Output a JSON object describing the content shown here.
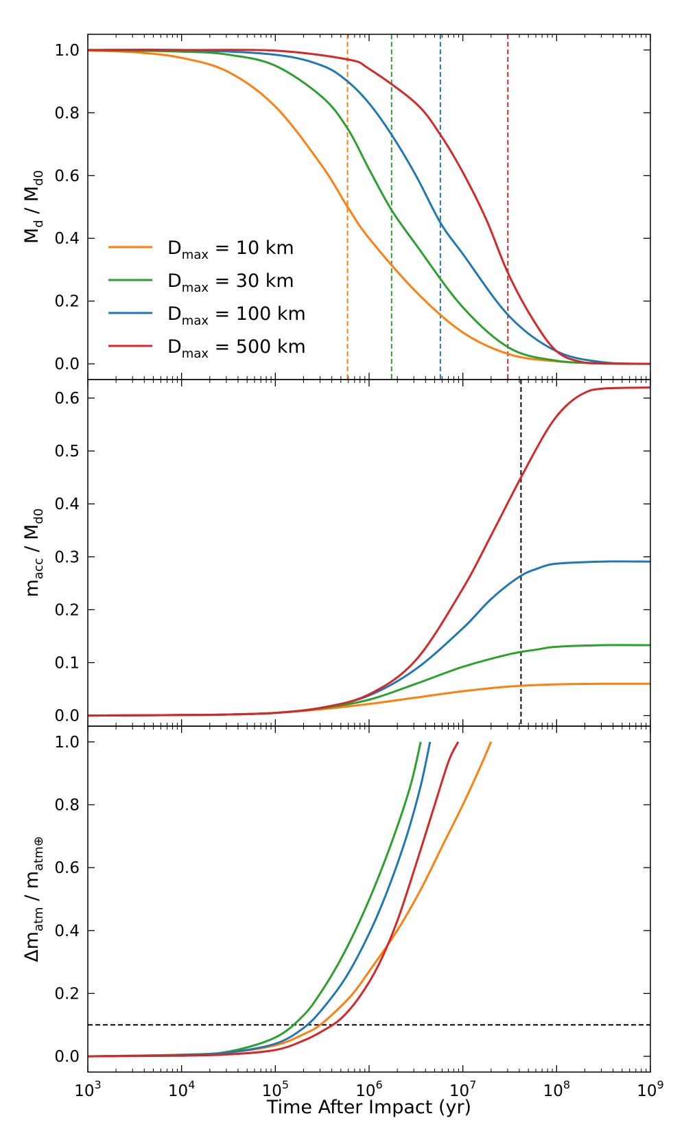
{
  "chart_data": [
    {
      "type": "line",
      "panel": "top",
      "ylabel": {
        "base": "M",
        "sub": "d",
        "sep": " / ",
        "base2": "M",
        "sub2": "d0"
      },
      "xscale": "log",
      "xlim_exp": [
        3,
        9
      ],
      "ylim": [
        -0.05,
        1.05
      ],
      "yticks": [
        0.0,
        0.2,
        0.4,
        0.6,
        0.8,
        1.0
      ],
      "ytick_labels": [
        "0.0",
        "0.2",
        "0.4",
        "0.6",
        "0.8",
        "1.0"
      ],
      "legend": {
        "placement": "center-left",
        "entries": [
          {
            "base": "D",
            "sub": "max",
            "rest": " = 10 km",
            "color": "#ff7f0e"
          },
          {
            "base": "D",
            "sub": "max",
            "rest": " = 30 km",
            "color": "#2ca02c"
          },
          {
            "base": "D",
            "sub": "max",
            "rest": " = 100 km",
            "color": "#1f77b4"
          },
          {
            "base": "D",
            "sub": "max",
            "rest": " = 500 km",
            "color": "#d62728"
          }
        ]
      },
      "series": [
        {
          "name": "D_max = 10 km",
          "color": "#ff7f0e",
          "log_x": [
            3,
            3.5,
            4,
            4.5,
            5,
            5.5,
            5.77,
            6,
            6.5,
            7,
            7.5,
            8,
            8.5,
            9
          ],
          "y": [
            0.998,
            0.993,
            0.975,
            0.93,
            0.82,
            0.63,
            0.5,
            0.4,
            0.23,
            0.1,
            0.03,
            0.008,
            0.002,
            0.0
          ]
        },
        {
          "name": "D_max = 30 km",
          "color": "#2ca02c",
          "log_x": [
            3,
            4,
            4.5,
            5,
            5.5,
            5.77,
            6,
            6.24,
            6.5,
            7,
            7.5,
            8,
            8.5,
            9
          ],
          "y": [
            1.0,
            0.995,
            0.985,
            0.95,
            0.85,
            0.75,
            0.62,
            0.49,
            0.38,
            0.18,
            0.05,
            0.01,
            0.002,
            0.0
          ]
        },
        {
          "name": "D_max = 100 km",
          "color": "#1f77b4",
          "log_x": [
            3,
            4,
            5,
            5.5,
            5.77,
            6,
            6.24,
            6.5,
            6.76,
            7,
            7.5,
            8,
            8.5,
            9
          ],
          "y": [
            1.0,
            1.0,
            0.985,
            0.95,
            0.9,
            0.83,
            0.73,
            0.6,
            0.45,
            0.35,
            0.15,
            0.04,
            0.005,
            0.0
          ]
        },
        {
          "name": "D_max = 500 km",
          "color": "#d62728",
          "log_x": [
            3,
            4,
            5,
            5.77,
            6,
            6.5,
            6.76,
            7,
            7.25,
            7.48,
            7.75,
            8,
            8.25,
            8.5,
            9
          ],
          "y": [
            1.0,
            1.0,
            0.998,
            0.97,
            0.94,
            0.83,
            0.73,
            0.61,
            0.46,
            0.29,
            0.14,
            0.04,
            0.007,
            0.001,
            0.0
          ]
        }
      ],
      "vlines": [
        {
          "log_x": 5.77,
          "color": "#ff7f0e",
          "style": "dashed"
        },
        {
          "log_x": 6.24,
          "color": "#2ca02c",
          "style": "dashed"
        },
        {
          "log_x": 6.76,
          "color": "#1f77b4",
          "style": "dashed"
        },
        {
          "log_x": 7.48,
          "color": "#d62728",
          "style": "dashed"
        }
      ]
    },
    {
      "type": "line",
      "panel": "middle",
      "ylabel": {
        "base": "m",
        "sub": "acc",
        "sep": " / ",
        "base2": "M",
        "sub2": "d0"
      },
      "xscale": "log",
      "xlim_exp": [
        3,
        9
      ],
      "ylim": [
        -0.02,
        0.635
      ],
      "yticks": [
        0.0,
        0.1,
        0.2,
        0.3,
        0.4,
        0.5,
        0.6
      ],
      "ytick_labels": [
        "0.0",
        "0.1",
        "0.2",
        "0.3",
        "0.4",
        "0.5",
        "0.6"
      ],
      "series": [
        {
          "name": "D_max = 10 km",
          "color": "#ff7f0e",
          "log_x": [
            3,
            4,
            4.5,
            5,
            5.5,
            6,
            6.5,
            7,
            7.5,
            8,
            8.5,
            9
          ],
          "y": [
            0.0,
            0.001,
            0.002,
            0.005,
            0.012,
            0.022,
            0.034,
            0.046,
            0.055,
            0.059,
            0.06,
            0.06
          ]
        },
        {
          "name": "D_max = 30 km",
          "color": "#2ca02c",
          "log_x": [
            3,
            4,
            4.5,
            5,
            5.5,
            6,
            6.5,
            7,
            7.5,
            7.8,
            8,
            8.5,
            9
          ],
          "y": [
            0.0,
            0.001,
            0.002,
            0.005,
            0.014,
            0.03,
            0.06,
            0.092,
            0.116,
            0.125,
            0.13,
            0.133,
            0.133
          ]
        },
        {
          "name": "D_max = 100 km",
          "color": "#1f77b4",
          "log_x": [
            3,
            4,
            4.5,
            5,
            5.5,
            6,
            6.5,
            7,
            7.3,
            7.6,
            7.8,
            8,
            8.5,
            9
          ],
          "y": [
            0.0,
            0.001,
            0.002,
            0.005,
            0.015,
            0.038,
            0.088,
            0.165,
            0.22,
            0.262,
            0.278,
            0.287,
            0.291,
            0.291
          ]
        },
        {
          "name": "D_max = 500 km",
          "color": "#d62728",
          "log_x": [
            3,
            4,
            4.5,
            5,
            5.5,
            6,
            6.5,
            7,
            7.3,
            7.62,
            7.9,
            8.1,
            8.3,
            8.5,
            9
          ],
          "y": [
            0.0,
            0.001,
            0.002,
            0.005,
            0.015,
            0.04,
            0.105,
            0.24,
            0.34,
            0.45,
            0.54,
            0.585,
            0.61,
            0.618,
            0.62
          ]
        }
      ],
      "vlines": [
        {
          "log_x": 7.62,
          "color": "#000000",
          "style": "dashed"
        }
      ]
    },
    {
      "type": "line",
      "panel": "bottom",
      "ylabel": {
        "prefix": "Δm",
        "sub": "atm",
        "sep": " / ",
        "base2": "m",
        "sub2": "atm⊕"
      },
      "xlabel": "Time After Impact (yr)",
      "xscale": "log",
      "xlim_exp": [
        3,
        9
      ],
      "xtick_labels": [
        {
          "base": "10",
          "exp": "3"
        },
        {
          "base": "10",
          "exp": "4"
        },
        {
          "base": "10",
          "exp": "5"
        },
        {
          "base": "10",
          "exp": "6"
        },
        {
          "base": "10",
          "exp": "7"
        },
        {
          "base": "10",
          "exp": "8"
        },
        {
          "base": "10",
          "exp": "9"
        }
      ],
      "ylim": [
        -0.05,
        1.05
      ],
      "yticks": [
        0.0,
        0.2,
        0.4,
        0.6,
        0.8,
        1.0
      ],
      "ytick_labels": [
        "0.0",
        "0.2",
        "0.4",
        "0.6",
        "0.8",
        "1.0"
      ],
      "series": [
        {
          "name": "D_max = 10 km",
          "color": "#ff7f0e",
          "log_x": [
            3,
            4,
            4.5,
            5,
            5.3,
            5.5,
            5.8,
            6,
            6.3,
            6.55,
            6.8,
            7,
            7.2,
            7.3
          ],
          "y": [
            0.0,
            0.005,
            0.012,
            0.035,
            0.07,
            0.105,
            0.19,
            0.27,
            0.4,
            0.53,
            0.68,
            0.8,
            0.93,
            1.0
          ]
        },
        {
          "name": "D_max = 30 km",
          "color": "#2ca02c",
          "log_x": [
            3,
            4,
            4.5,
            5,
            5.3,
            5.5,
            5.7,
            5.9,
            6.1,
            6.3,
            6.45,
            6.55
          ],
          "y": [
            0.0,
            0.005,
            0.015,
            0.06,
            0.13,
            0.21,
            0.31,
            0.43,
            0.57,
            0.73,
            0.87,
            1.0
          ]
        },
        {
          "name": "D_max = 100 km",
          "color": "#1f77b4",
          "log_x": [
            3,
            4,
            4.5,
            5,
            5.3,
            5.5,
            5.75,
            6,
            6.2,
            6.4,
            6.55,
            6.65
          ],
          "y": [
            0.0,
            0.004,
            0.012,
            0.04,
            0.09,
            0.15,
            0.25,
            0.39,
            0.53,
            0.7,
            0.86,
            1.0
          ]
        },
        {
          "name": "D_max = 500 km",
          "color": "#d62728",
          "log_x": [
            3,
            4,
            4.5,
            5,
            5.3,
            5.5,
            5.7,
            5.9,
            6.1,
            6.3,
            6.5,
            6.7,
            6.85,
            6.95
          ],
          "y": [
            0.0,
            0.002,
            0.006,
            0.02,
            0.05,
            0.08,
            0.12,
            0.19,
            0.29,
            0.43,
            0.61,
            0.8,
            0.94,
            1.0
          ]
        }
      ],
      "hlines": [
        {
          "y": 0.1,
          "color": "#000000",
          "style": "dashed"
        }
      ]
    }
  ]
}
